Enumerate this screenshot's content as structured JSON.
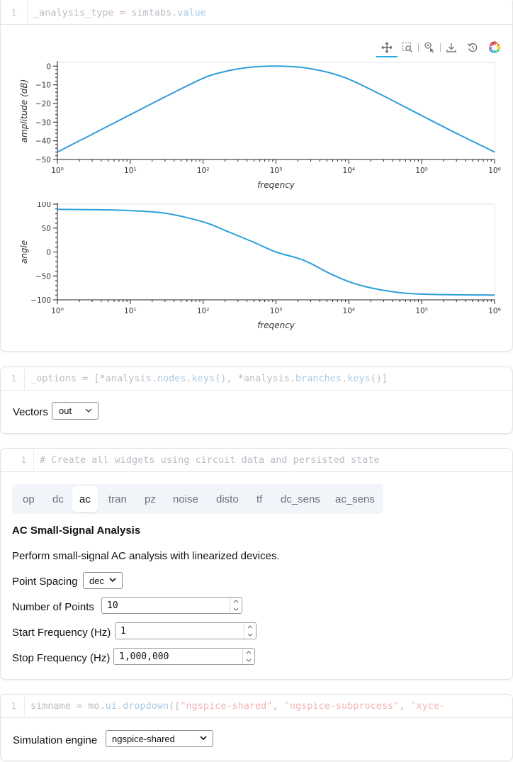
{
  "cells": {
    "plot_cell": {
      "line_number": "1",
      "code": {
        "var": "_analysis_type",
        "eq": " = ",
        "obj": "simtabs",
        "dot": ".",
        "attr": "value"
      }
    },
    "vectors_cell": {
      "line_number": "1",
      "code": {
        "p1": "_options = [",
        "star1": "*",
        "obj1": "analysis",
        "dot1": ".",
        "attr1a": "nodes",
        "dot1b": ".",
        "attr1b": "keys",
        "paren1": "(), ",
        "star2": "*",
        "obj2": "analysis",
        "dot2": ".",
        "attr2a": "branches",
        "dot2b": ".",
        "attr2b": "keys",
        "paren2": "()]"
      },
      "vectors_label": "Vectors",
      "vectors_value": "out"
    },
    "analysis_cell": {
      "line_number": "1",
      "code_comment": "# Create all widgets using circuit data and persisted state",
      "tabs": [
        "op",
        "dc",
        "ac",
        "tran",
        "pz",
        "noise",
        "disto",
        "tf",
        "dc_sens",
        "ac_sens"
      ],
      "active_tab": "ac",
      "heading": "AC Small-Signal Analysis",
      "description": "Perform small-signal AC analysis with linearized devices.",
      "point_spacing_label": "Point Spacing",
      "point_spacing_value": "dec",
      "num_points_label": "Number of Points",
      "num_points_value": "10",
      "start_freq_label": "Start Frequency (Hz)",
      "start_freq_value": "1",
      "stop_freq_label": "Stop Frequency (Hz)",
      "stop_freq_value": "1,000,000"
    },
    "engine_cell": {
      "line_number": "1",
      "code": {
        "p1": "simname = ",
        "obj": "mo",
        "dot1": ".",
        "a1": "ui",
        "dot2": ".",
        "a2": "dropdown",
        "p2": "([",
        "s1": "\"ngspice-shared\"",
        "c1": ", ",
        "s2": "\"ngspice-subprocess\"",
        "c2": ", ",
        "s3": "\"xyce-"
      },
      "engine_label": "Simulation engine",
      "engine_value": "ngspice-shared"
    }
  },
  "toolbar": {
    "tools": [
      "pan-tool-icon",
      "box-zoom-icon",
      "hover-tool-icon",
      "save-icon",
      "reset-icon",
      "bokeh-logo-icon"
    ],
    "active_tool": "pan-tool-icon",
    "accent_color": "#26aae1"
  },
  "chart_data": [
    {
      "type": "line",
      "xscale": "log",
      "xlabel": "freqency",
      "ylabel": "amplitude (dB)",
      "xlim": [
        1,
        1000000
      ],
      "ylim": [
        -50,
        2
      ],
      "x_tick_labels": [
        "10⁰",
        "10¹",
        "10²",
        "10³",
        "10⁴",
        "10⁵",
        "10⁶"
      ],
      "y_tick_labels": [
        "0",
        "−10",
        "−20",
        "−30",
        "−40",
        "−50"
      ],
      "color": "#2e9fd9",
      "x": [
        1,
        3,
        10,
        30,
        100,
        200,
        400,
        700,
        1000,
        1500,
        2500,
        5000,
        10000,
        30000,
        100000,
        300000,
        1000000
      ],
      "y": [
        -46,
        -36.5,
        -26,
        -16.5,
        -6.5,
        -2.9,
        -0.8,
        -0.1,
        0,
        -0.2,
        -0.9,
        -3.2,
        -7,
        -16,
        -26.5,
        -36,
        -46
      ]
    },
    {
      "type": "line",
      "xscale": "log",
      "xlabel": "freqency",
      "ylabel": "angle",
      "xlim": [
        1,
        1000000
      ],
      "ylim": [
        -100,
        100
      ],
      "x_tick_labels": [
        "10⁰",
        "10¹",
        "10²",
        "10³",
        "10⁴",
        "10⁵",
        "10⁶"
      ],
      "y_tick_labels": [
        "100",
        "50",
        "0",
        "−50",
        "−100"
      ],
      "color": "#2e9fd9",
      "x": [
        1,
        3,
        10,
        30,
        100,
        200,
        500,
        1000,
        2000,
        3000,
        5000,
        10000,
        20000,
        50000,
        100000,
        300000,
        1000000
      ],
      "y": [
        89,
        88.5,
        86.5,
        81,
        63,
        45,
        20,
        0,
        -13,
        -24,
        -42,
        -62,
        -75,
        -85,
        -88,
        -89.5,
        -90
      ]
    }
  ]
}
